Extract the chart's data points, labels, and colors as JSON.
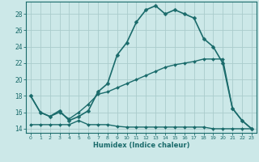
{
  "xlabel": "Humidex (Indice chaleur)",
  "background_color": "#cce8e8",
  "grid_color": "#aacccc",
  "line_color": "#1a6b6b",
  "xlim": [
    -0.5,
    23.5
  ],
  "ylim": [
    13.5,
    29.5
  ],
  "yticks": [
    14,
    16,
    18,
    20,
    22,
    24,
    26,
    28
  ],
  "xticks": [
    0,
    1,
    2,
    3,
    4,
    5,
    6,
    7,
    8,
    9,
    10,
    11,
    12,
    13,
    14,
    15,
    16,
    17,
    18,
    19,
    20,
    21,
    22,
    23
  ],
  "series": [
    {
      "x": [
        0,
        1,
        2,
        3,
        4,
        5,
        6,
        7,
        8,
        9,
        10,
        11,
        12,
        13,
        14,
        15,
        16,
        17,
        18,
        19,
        20,
        21,
        22,
        23
      ],
      "y": [
        18.0,
        16.0,
        15.5,
        16.2,
        15.0,
        15.5,
        16.2,
        18.5,
        19.5,
        23.0,
        24.5,
        27.0,
        28.5,
        29.0,
        28.0,
        28.5,
        28.0,
        27.5,
        25.0,
        24.0,
        22.0,
        16.5,
        15.0,
        14.0
      ],
      "linewidth": 1.2,
      "markersize": 2.5
    },
    {
      "x": [
        0,
        1,
        2,
        3,
        4,
        5,
        6,
        7,
        8,
        9,
        10,
        11,
        12,
        13,
        14,
        15,
        16,
        17,
        18,
        19,
        20,
        21,
        22,
        23
      ],
      "y": [
        18.0,
        16.0,
        15.5,
        16.0,
        15.2,
        16.0,
        17.0,
        18.2,
        18.5,
        19.0,
        19.5,
        20.0,
        20.5,
        21.0,
        21.5,
        21.8,
        22.0,
        22.2,
        22.5,
        22.5,
        22.5,
        16.5,
        15.0,
        14.0
      ],
      "linewidth": 1.0,
      "markersize": 2.0
    },
    {
      "x": [
        0,
        1,
        2,
        3,
        4,
        5,
        6,
        7,
        8,
        9,
        10,
        11,
        12,
        13,
        14,
        15,
        16,
        17,
        18,
        19,
        20,
        21,
        22,
        23
      ],
      "y": [
        14.5,
        14.5,
        14.5,
        14.5,
        14.5,
        15.0,
        14.5,
        14.5,
        14.5,
        14.3,
        14.2,
        14.2,
        14.2,
        14.2,
        14.2,
        14.2,
        14.2,
        14.2,
        14.2,
        14.0,
        14.0,
        14.0,
        14.0,
        14.0
      ],
      "linewidth": 1.0,
      "markersize": 2.0
    }
  ]
}
